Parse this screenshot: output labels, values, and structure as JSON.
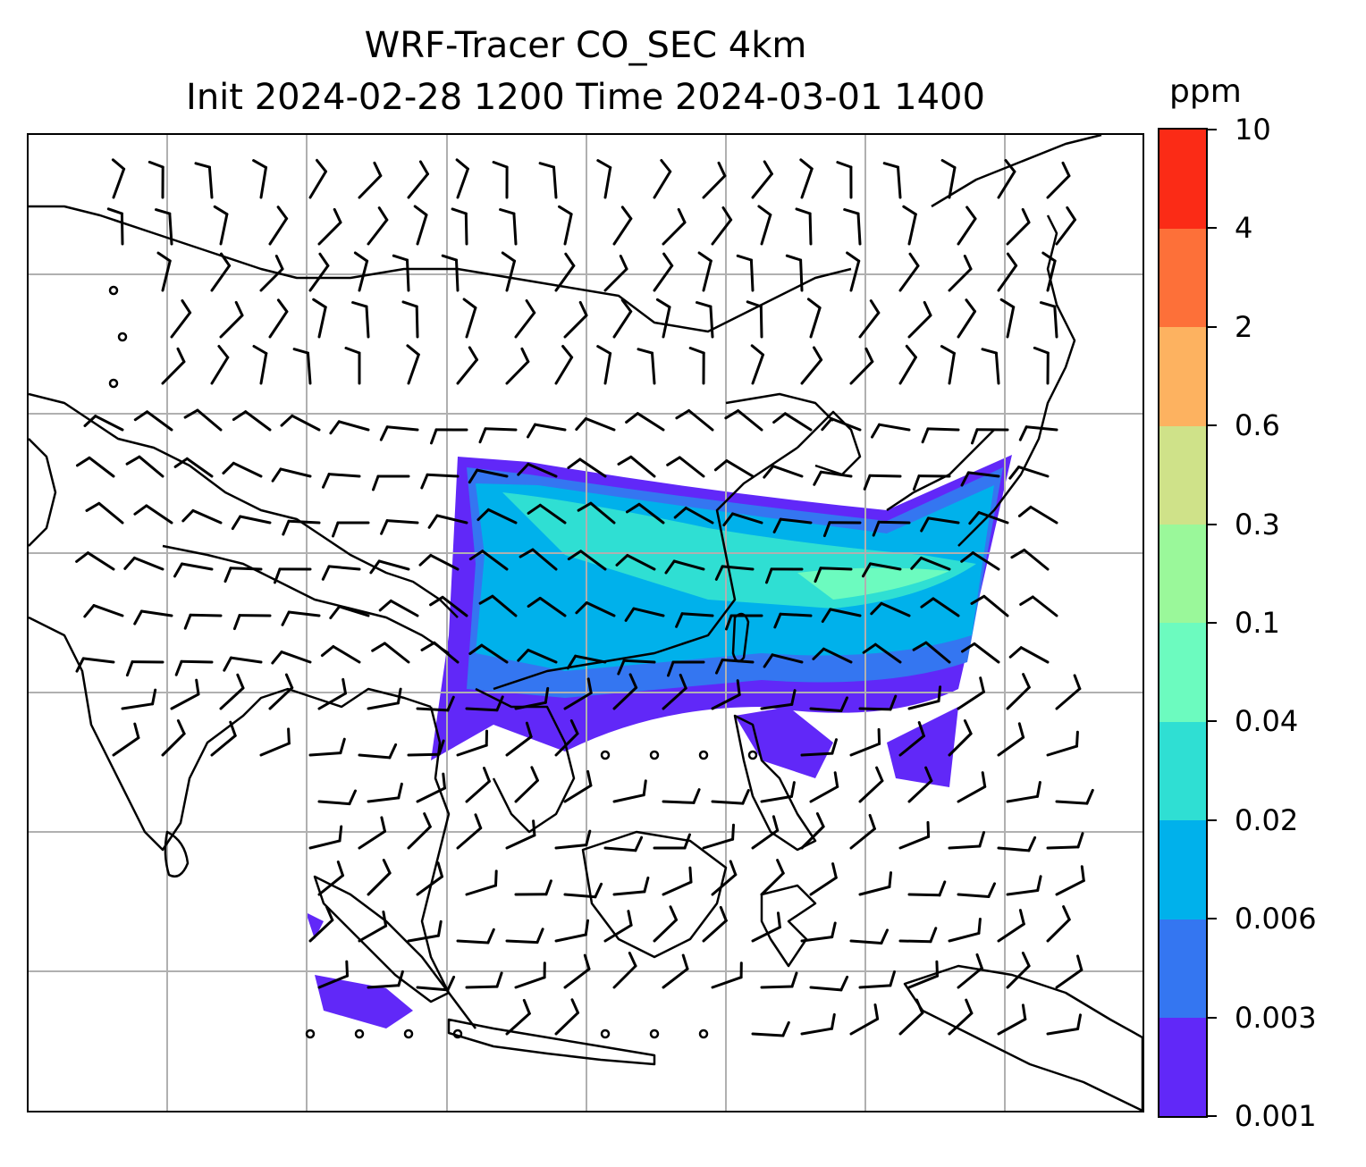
{
  "title": {
    "line1": "WRF-Tracer CO_SEC 4km",
    "line2": "Init 2024-02-28 1200 Time 2024-03-01 1400"
  },
  "colorbar": {
    "unit": "ppm",
    "tick_labels": [
      "0.001",
      "0.003",
      "0.006",
      "0.02",
      "0.04",
      "0.1",
      "0.3",
      "0.6",
      "2",
      "4",
      "10"
    ],
    "colors": [
      "#6128f8",
      "#3476f1",
      "#00b1eb",
      "#2fdfd3",
      "#6cfbbf",
      "#9af89a",
      "#cfe289",
      "#fdb260",
      "#fd7039",
      "#fb2b16"
    ]
  },
  "map": {
    "gridlines": true,
    "gridline_color": "#b0b0b0",
    "coastline_color": "#000000",
    "region": "Asia and Maritime Continent"
  }
}
